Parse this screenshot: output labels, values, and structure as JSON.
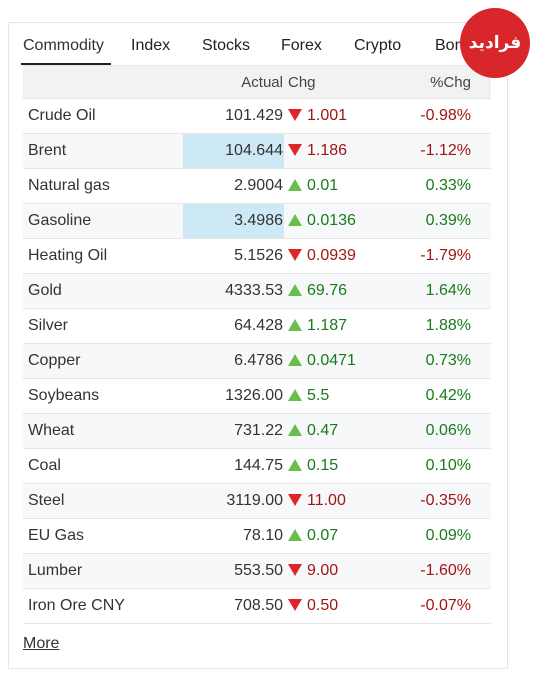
{
  "logo": "فرادید",
  "tabs": [
    "Commodity",
    "Index",
    "Stocks",
    "Forex",
    "Crypto",
    "Bonds"
  ],
  "active_tab": 0,
  "header": {
    "name": "",
    "actual": "Actual",
    "chg": "Chg",
    "pct": "%Chg"
  },
  "rows": [
    {
      "name": "Crude Oil",
      "actual": "101.429",
      "chg": "1.001",
      "pct": "-0.98%",
      "dir": "down"
    },
    {
      "name": "Brent",
      "actual": "104.644",
      "chg": "1.186",
      "pct": "-1.12%",
      "dir": "down",
      "highlight": true
    },
    {
      "name": "Natural gas",
      "actual": "2.9004",
      "chg": "0.01",
      "pct": "0.33%",
      "dir": "up"
    },
    {
      "name": "Gasoline",
      "actual": "3.4986",
      "chg": "0.0136",
      "pct": "0.39%",
      "dir": "up",
      "highlight": true
    },
    {
      "name": "Heating Oil",
      "actual": "5.1526",
      "chg": "0.0939",
      "pct": "-1.79%",
      "dir": "down"
    },
    {
      "name": "Gold",
      "actual": "4333.53",
      "chg": "69.76",
      "pct": "1.64%",
      "dir": "up"
    },
    {
      "name": "Silver",
      "actual": "64.428",
      "chg": "1.187",
      "pct": "1.88%",
      "dir": "up"
    },
    {
      "name": "Copper",
      "actual": "6.4786",
      "chg": "0.0471",
      "pct": "0.73%",
      "dir": "up"
    },
    {
      "name": "Soybeans",
      "actual": "1326.00",
      "chg": "5.5",
      "pct": "0.42%",
      "dir": "up"
    },
    {
      "name": "Wheat",
      "actual": "731.22",
      "chg": "0.47",
      "pct": "0.06%",
      "dir": "up"
    },
    {
      "name": "Coal",
      "actual": "144.75",
      "chg": "0.15",
      "pct": "0.10%",
      "dir": "up"
    },
    {
      "name": "Steel",
      "actual": "3119.00",
      "chg": "11.00",
      "pct": "-0.35%",
      "dir": "down"
    },
    {
      "name": "EU Gas",
      "actual": "78.10",
      "chg": "0.07",
      "pct": "0.09%",
      "dir": "up"
    },
    {
      "name": "Lumber",
      "actual": "553.50",
      "chg": "9.00",
      "pct": "-1.60%",
      "dir": "down"
    },
    {
      "name": "Iron Ore CNY",
      "actual": "708.50",
      "chg": "0.50",
      "pct": "-0.07%",
      "dir": "down"
    }
  ],
  "more": "More"
}
